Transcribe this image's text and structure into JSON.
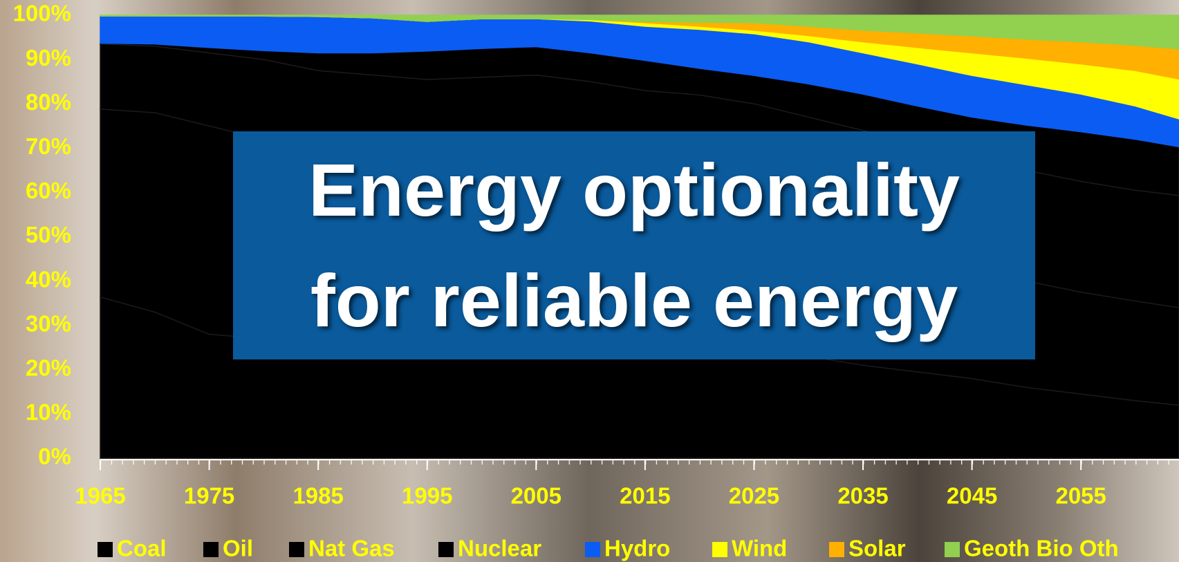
{
  "chart_data": {
    "type": "stacked_area",
    "title": "Energy optionality for reliable energy",
    "x": [
      1965,
      1970,
      1975,
      1980,
      1985,
      1990,
      1995,
      2000,
      2005,
      2010,
      2015,
      2020,
      2025,
      2030,
      2035,
      2040,
      2045,
      2050,
      2055,
      2060,
      2064
    ],
    "xlim": [
      1965,
      2064
    ],
    "xticks": [
      1965,
      1975,
      1985,
      1995,
      2005,
      2015,
      2025,
      2035,
      2045,
      2055
    ],
    "ylim": [
      0,
      100
    ],
    "yticks": [
      {
        "value": 0,
        "label": "0%"
      },
      {
        "value": 10,
        "label": "10%"
      },
      {
        "value": 20,
        "label": "20%"
      },
      {
        "value": 30,
        "label": "30%"
      },
      {
        "value": 40,
        "label": "40%"
      },
      {
        "value": 50,
        "label": "50%"
      },
      {
        "value": 60,
        "label": "60%"
      },
      {
        "value": 70,
        "label": "70%"
      },
      {
        "value": 80,
        "label": "80%"
      },
      {
        "value": 90,
        "label": "90%"
      },
      {
        "value": 100,
        "label": "100%"
      }
    ],
    "series": [
      {
        "name": "Coal",
        "color": "#000000",
        "values": [
          36.4,
          33,
          28,
          27,
          28,
          28,
          27,
          25,
          28,
          30,
          29,
          27,
          25,
          23,
          21,
          19.5,
          18,
          16,
          14.5,
          13,
          12
        ]
      },
      {
        "name": "Oil",
        "color": "#000000",
        "values": [
          42.4,
          45,
          47,
          45,
          39,
          38,
          38,
          39,
          36,
          33,
          33,
          33,
          32,
          31,
          30,
          26.5,
          25,
          24,
          23,
          22.5,
          22
        ]
      },
      {
        "name": "Nat Gas",
        "color": "#000000",
        "values": [
          14.7,
          15,
          16.5,
          18,
          20.5,
          20.5,
          20.5,
          22,
          22.5,
          22,
          21,
          22,
          23,
          23,
          23,
          25,
          25,
          25,
          25,
          25,
          25.3
        ]
      },
      {
        "name": "Nuclear",
        "color": "#000000",
        "values": [
          0.2,
          0.5,
          1.2,
          2,
          4,
          5,
          6.4,
          6.5,
          6.4,
          6.5,
          6.8,
          6,
          6.4,
          7.5,
          8.2,
          8.5,
          9,
          10.2,
          11.2,
          11.5,
          11
        ]
      },
      {
        "name": "Hydro",
        "color": "#0b5cf2",
        "values": [
          6.1,
          6.3,
          7.1,
          7.8,
          8.2,
          7.9,
          6.7,
          6.7,
          6.3,
          7.2,
          7.7,
          8.8,
          9.4,
          9.5,
          9.3,
          9.5,
          9.4,
          9.1,
          8.5,
          7.5,
          6.3
        ]
      },
      {
        "name": "Wind",
        "color": "#ffff00",
        "values": [
          0,
          0,
          0,
          0,
          0,
          0,
          0,
          0,
          0,
          0.3,
          0.8,
          0.7,
          0.8,
          1.4,
          2.5,
          3.7,
          5.1,
          6,
          6.8,
          8,
          9
        ]
      },
      {
        "name": "Solar",
        "color": "#ffb000",
        "values": [
          0,
          0,
          0,
          0,
          0,
          0,
          0,
          0,
          0,
          0,
          0.3,
          0.9,
          1.7,
          2.1,
          2.6,
          3.3,
          3.8,
          4.3,
          5,
          5.7,
          6.8
        ]
      },
      {
        "name": "Geoth Bio Oth",
        "color": "#92d050",
        "values": [
          0.2,
          0.2,
          0.2,
          0.2,
          0.3,
          0.6,
          1.4,
          0.8,
          0.8,
          1.0,
          1.4,
          1.6,
          1.7,
          2.5,
          3.4,
          4,
          4.7,
          5.4,
          6,
          6.8,
          7.6
        ]
      }
    ]
  }
}
